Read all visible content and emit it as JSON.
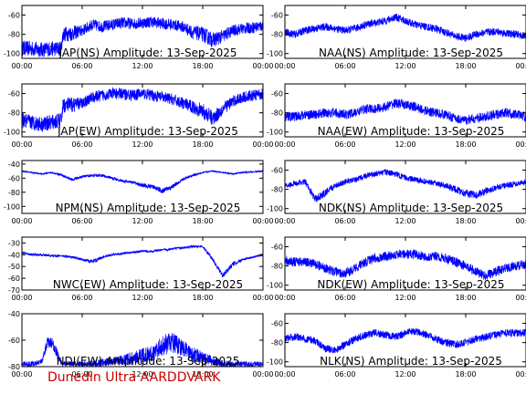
{
  "footer": "Dunedin Ultra AARDDVARK",
  "colors": {
    "trace": "#0000ff",
    "axis": "#000000",
    "footer": "#cc0000"
  },
  "chart_data": [
    {
      "type": "line",
      "title": "JAP(NS) Amplitude: 13-Sep-2025",
      "x_ticks": [
        "00:00",
        "06:00",
        "12:00",
        "18:00",
        "00:00"
      ],
      "x_range_hours": [
        0,
        24
      ],
      "ylim": [
        -105,
        -50
      ],
      "y_ticks": [
        -60,
        -80,
        -100
      ],
      "series": [
        {
          "x": [
            0,
            1,
            2,
            3,
            3.9,
            4.1,
            5,
            6,
            7,
            8,
            9,
            10,
            11,
            12,
            13,
            14,
            15,
            16,
            17,
            18,
            19,
            20,
            21,
            22,
            23,
            24
          ],
          "y": [
            -94,
            -95,
            -96,
            -95,
            -95,
            -80,
            -79,
            -76,
            -70,
            -72,
            -70,
            -68,
            -69,
            -68,
            -67,
            -69,
            -70,
            -72,
            -78,
            -80,
            -86,
            -82,
            -76,
            -74,
            -73,
            -71
          ],
          "spread": [
            8,
            8,
            8,
            8,
            8,
            8,
            8,
            6,
            6,
            6,
            6,
            6,
            6,
            6,
            6,
            6,
            6,
            6,
            7,
            8,
            8,
            7,
            6,
            6,
            6,
            6
          ]
        }
      ]
    },
    {
      "type": "line",
      "title": "NAA(NS) Amplitude: 13-Sep-2025",
      "x_ticks": [
        "00:00",
        "06:00",
        "12:00",
        "18:00",
        "00:00"
      ],
      "x_range_hours": [
        0,
        24
      ],
      "ylim": [
        -105,
        -50
      ],
      "y_ticks": [
        -60,
        -80,
        -100
      ],
      "series": [
        {
          "x": [
            0,
            1,
            2,
            3,
            4,
            5,
            6,
            7,
            8,
            9,
            10,
            11,
            12,
            13,
            14,
            15,
            16,
            17,
            18,
            19,
            20,
            21,
            22,
            23,
            24
          ],
          "y": [
            -78,
            -80,
            -76,
            -74,
            -72,
            -74,
            -76,
            -74,
            -70,
            -68,
            -66,
            -62,
            -66,
            -70,
            -72,
            -74,
            -78,
            -82,
            -84,
            -80,
            -78,
            -77,
            -79,
            -80,
            -82
          ],
          "spread": [
            4,
            4,
            4,
            4,
            4,
            4,
            4,
            4,
            4,
            4,
            4,
            4,
            4,
            4,
            4,
            4,
            4,
            4,
            4,
            4,
            4,
            4,
            4,
            4,
            4
          ]
        }
      ]
    },
    {
      "type": "line",
      "title": "JAP(EW) Amplitude: 13-Sep-2025",
      "x_ticks": [
        "00:00",
        "06:00",
        "12:00",
        "18:00",
        "00:00"
      ],
      "x_range_hours": [
        0,
        24
      ],
      "ylim": [
        -105,
        -50
      ],
      "y_ticks": [
        -60,
        -80,
        -100
      ],
      "series": [
        {
          "x": [
            0,
            1,
            2,
            3,
            3.9,
            4.1,
            5,
            6,
            7,
            8,
            9,
            10,
            11,
            12,
            13,
            14,
            15,
            16,
            17,
            18,
            19,
            20,
            21,
            22,
            23,
            24
          ],
          "y": [
            -88,
            -90,
            -92,
            -90,
            -88,
            -72,
            -72,
            -70,
            -64,
            -62,
            -60,
            -60,
            -62,
            -60,
            -62,
            -64,
            -66,
            -70,
            -74,
            -78,
            -86,
            -76,
            -68,
            -64,
            -62,
            -60
          ],
          "spread": [
            8,
            8,
            8,
            8,
            8,
            8,
            8,
            6,
            6,
            6,
            6,
            6,
            6,
            6,
            6,
            6,
            6,
            6,
            7,
            8,
            8,
            7,
            6,
            6,
            6,
            6
          ]
        }
      ]
    },
    {
      "type": "line",
      "title": "NAA(EW) Amplitude: 13-Sep-2025",
      "x_ticks": [
        "00:00",
        "06:00",
        "12:00",
        "18:00",
        "00:00"
      ],
      "x_range_hours": [
        0,
        24
      ],
      "ylim": [
        -105,
        -50
      ],
      "y_ticks": [
        -60,
        -80,
        -100
      ],
      "series": [
        {
          "x": [
            0,
            1,
            2,
            3,
            4,
            5,
            6,
            7,
            8,
            9,
            10,
            11,
            12,
            13,
            14,
            15,
            16,
            17,
            18,
            19,
            20,
            21,
            22,
            23,
            24
          ],
          "y": [
            -84,
            -84,
            -82,
            -82,
            -80,
            -80,
            -82,
            -80,
            -76,
            -76,
            -74,
            -70,
            -72,
            -74,
            -78,
            -80,
            -82,
            -86,
            -88,
            -86,
            -84,
            -82,
            -80,
            -82,
            -84
          ],
          "spread": [
            5,
            5,
            5,
            5,
            5,
            5,
            5,
            5,
            5,
            5,
            5,
            5,
            5,
            5,
            5,
            5,
            5,
            5,
            5,
            5,
            5,
            5,
            5,
            5,
            5
          ]
        }
      ]
    },
    {
      "type": "line",
      "title": "NPM(NS) Amplitude: 13-Sep-2025",
      "x_ticks": [
        "00:00",
        "06:00",
        "12:00",
        "18:00",
        "00:00"
      ],
      "x_range_hours": [
        0,
        24
      ],
      "ylim": [
        -110,
        -35
      ],
      "y_ticks": [
        -40,
        -60,
        -80,
        -100
      ],
      "series": [
        {
          "x": [
            0,
            1,
            2,
            3,
            4,
            5,
            6,
            7,
            8,
            9,
            10,
            11,
            12,
            13,
            14,
            15,
            16,
            17,
            18,
            19,
            20,
            21,
            22,
            23,
            24
          ],
          "y": [
            -50,
            -52,
            -54,
            -52,
            -56,
            -62,
            -58,
            -56,
            -56,
            -60,
            -64,
            -66,
            -70,
            -72,
            -78,
            -72,
            -62,
            -56,
            -52,
            -50,
            -52,
            -54,
            -52,
            -51,
            -50
          ],
          "spread": [
            1,
            1,
            1,
            1,
            2,
            2,
            2,
            2,
            2,
            2,
            2,
            2,
            3,
            3,
            4,
            3,
            2,
            2,
            1,
            1,
            1,
            1,
            1,
            1,
            1
          ]
        }
      ]
    },
    {
      "type": "line",
      "title": "NDK(NS) Amplitude: 13-Sep-2025",
      "x_ticks": [
        "00:00",
        "06:00",
        "12:00",
        "18:00",
        "00:00"
      ],
      "x_range_hours": [
        0,
        24
      ],
      "ylim": [
        -105,
        -50
      ],
      "y_ticks": [
        -60,
        -80,
        -100
      ],
      "series": [
        {
          "x": [
            0,
            1,
            2,
            3,
            4,
            5,
            6,
            7,
            8,
            9,
            10,
            11,
            12,
            13,
            14,
            15,
            16,
            17,
            18,
            19,
            20,
            21,
            22,
            23,
            24
          ],
          "y": [
            -76,
            -74,
            -72,
            -90,
            -84,
            -76,
            -72,
            -70,
            -66,
            -64,
            -62,
            -64,
            -68,
            -70,
            -72,
            -74,
            -76,
            -80,
            -84,
            -86,
            -82,
            -78,
            -76,
            -74,
            -72
          ],
          "spread": [
            3,
            3,
            3,
            4,
            4,
            3,
            3,
            3,
            3,
            3,
            3,
            3,
            3,
            3,
            3,
            3,
            3,
            4,
            4,
            4,
            4,
            3,
            3,
            3,
            3
          ]
        }
      ]
    },
    {
      "type": "line",
      "title": "NWC(EW) Amplitude: 13-Sep-2025",
      "x_ticks": [
        "00:00",
        "06:00",
        "12:00",
        "18:00",
        "00:00"
      ],
      "x_range_hours": [
        0,
        24
      ],
      "ylim": [
        -70,
        -25
      ],
      "y_ticks": [
        -30,
        -40,
        -50,
        -60,
        -70
      ],
      "series": [
        {
          "x": [
            0,
            1,
            2,
            3,
            4,
            5,
            6,
            7,
            8,
            9,
            10,
            11,
            12,
            13,
            14,
            15,
            16,
            17,
            18,
            19,
            20,
            21,
            22,
            23,
            24
          ],
          "y": [
            -38,
            -40,
            -40,
            -41,
            -41,
            -42,
            -44,
            -46,
            -42,
            -40,
            -39,
            -38,
            -37,
            -37,
            -36,
            -35,
            -34,
            -33,
            -33,
            -44,
            -58,
            -48,
            -44,
            -42,
            -40
          ],
          "spread": [
            1,
            1,
            1,
            1,
            1,
            1,
            1,
            2,
            1,
            1,
            1,
            1,
            1,
            1,
            1,
            1,
            1,
            1,
            1,
            2,
            2,
            2,
            1,
            1,
            1
          ]
        }
      ]
    },
    {
      "type": "line",
      "title": "NDK(EW) Amplitude: 13-Sep-2025",
      "x_ticks": [
        "00:00",
        "06:00",
        "12:00",
        "18:00",
        "00:00"
      ],
      "x_range_hours": [
        0,
        24
      ],
      "ylim": [
        -105,
        -50
      ],
      "y_ticks": [
        -60,
        -80,
        -100
      ],
      "series": [
        {
          "x": [
            0,
            1,
            2,
            3,
            4,
            5,
            6,
            7,
            8,
            9,
            10,
            11,
            12,
            13,
            14,
            15,
            16,
            17,
            18,
            19,
            20,
            21,
            22,
            23,
            24
          ],
          "y": [
            -74,
            -76,
            -76,
            -78,
            -82,
            -86,
            -88,
            -82,
            -76,
            -72,
            -70,
            -68,
            -68,
            -68,
            -70,
            -70,
            -72,
            -76,
            -80,
            -86,
            -90,
            -86,
            -82,
            -80,
            -78
          ],
          "spread": [
            5,
            5,
            5,
            5,
            5,
            5,
            5,
            5,
            5,
            5,
            5,
            5,
            5,
            5,
            5,
            5,
            5,
            5,
            5,
            5,
            5,
            5,
            5,
            5,
            5
          ]
        }
      ]
    },
    {
      "type": "line",
      "title": "NDI(EW) Amplitude: 13-Sep-2025",
      "x_ticks": [
        "00:00",
        "06:00",
        "12:00",
        "18:00",
        "00:00"
      ],
      "x_range_hours": [
        0,
        24
      ],
      "ylim": [
        -80,
        -40
      ],
      "y_ticks": [
        -40,
        -60,
        -80
      ],
      "series": [
        {
          "x": [
            0,
            1,
            2,
            2.5,
            3,
            3.5,
            4,
            5,
            6,
            7,
            8,
            9,
            10,
            11,
            12,
            13,
            14,
            15,
            16,
            17,
            18,
            19,
            20,
            21,
            22,
            23,
            24
          ],
          "y": [
            -78,
            -78,
            -76,
            -62,
            -62,
            -70,
            -78,
            -78,
            -78,
            -78,
            -77,
            -76,
            -75,
            -74,
            -72,
            -70,
            -64,
            -62,
            -66,
            -70,
            -74,
            -76,
            -78,
            -78,
            -78,
            -78,
            -78
          ],
          "spread": [
            2,
            2,
            2,
            4,
            4,
            4,
            2,
            2,
            2,
            3,
            3,
            3,
            4,
            5,
            6,
            6,
            8,
            8,
            6,
            6,
            5,
            4,
            3,
            2,
            2,
            2,
            2
          ]
        }
      ]
    },
    {
      "type": "line",
      "title": "NLK(NS) Amplitude: 13-Sep-2025",
      "x_ticks": [
        "00:00",
        "06:00",
        "12:00",
        "18:00",
        "00:00"
      ],
      "x_range_hours": [
        0,
        24
      ],
      "ylim": [
        -105,
        -50
      ],
      "y_ticks": [
        -60,
        -80,
        -100
      ],
      "series": [
        {
          "x": [
            0,
            1,
            2,
            3,
            4,
            5,
            6,
            7,
            8,
            9,
            10,
            11,
            12,
            13,
            14,
            15,
            16,
            17,
            18,
            19,
            20,
            21,
            22,
            23,
            24
          ],
          "y": [
            -76,
            -74,
            -76,
            -78,
            -86,
            -88,
            -82,
            -76,
            -72,
            -70,
            -72,
            -74,
            -70,
            -68,
            -72,
            -76,
            -80,
            -82,
            -80,
            -76,
            -74,
            -72,
            -70,
            -70,
            -70
          ],
          "spread": [
            4,
            4,
            4,
            4,
            4,
            4,
            4,
            4,
            4,
            4,
            4,
            4,
            4,
            4,
            4,
            4,
            4,
            4,
            4,
            4,
            4,
            4,
            4,
            4,
            4
          ]
        }
      ]
    }
  ]
}
